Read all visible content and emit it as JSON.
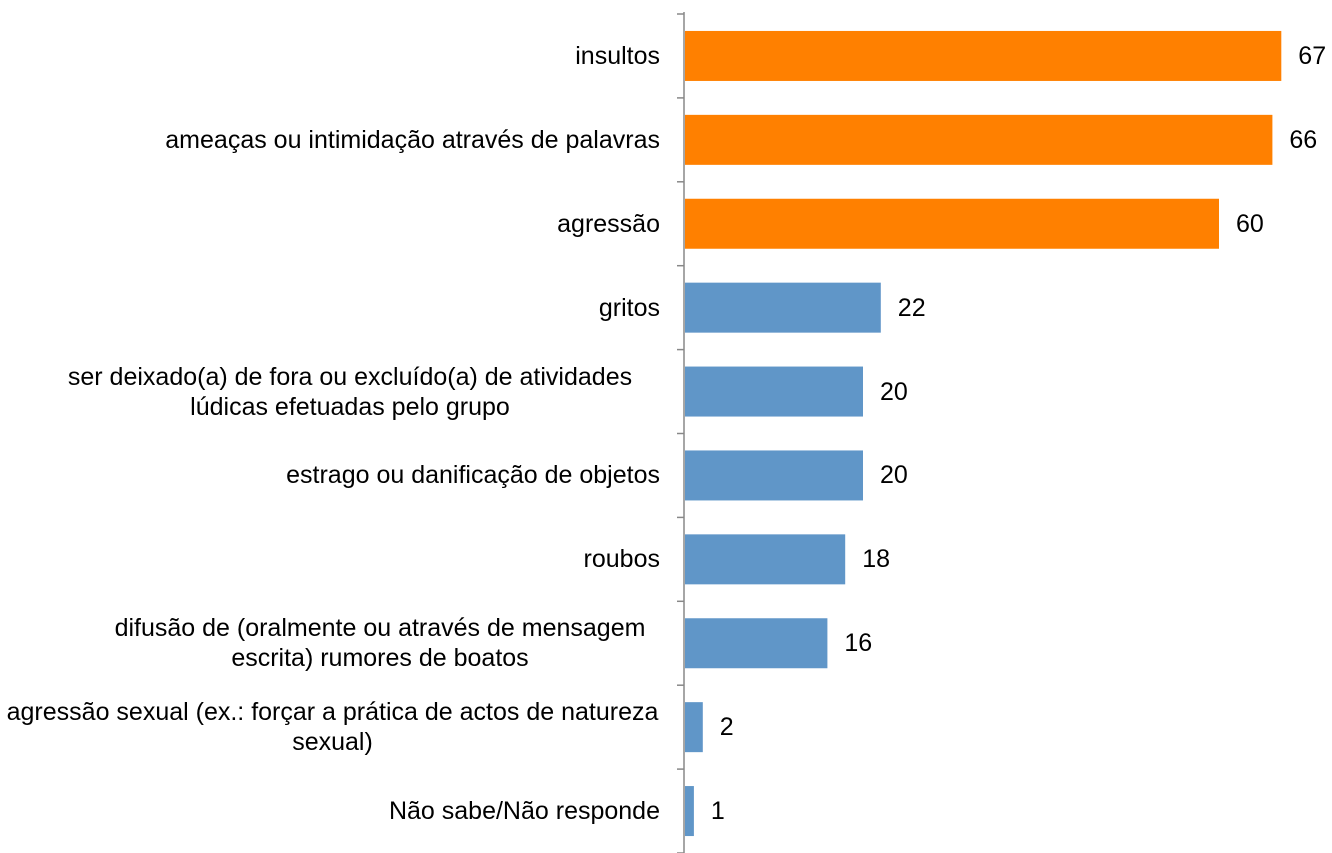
{
  "chart_data": {
    "type": "bar",
    "orientation": "horizontal",
    "categories": [
      "insultos",
      "ameaças ou intimidação através de palavras",
      "agressão",
      "gritos",
      "ser deixado(a) de fora ou excluído(a) de atividades lúdicas efetuadas pelo grupo",
      "estrago ou danificação de objetos",
      "roubos",
      "difusão de (oralmente ou através de mensagem escrita) rumores de boatos",
      "agressão sexual (ex.: forçar a prática de actos de natureza sexual)",
      "Não sabe/Não responde"
    ],
    "values": [
      67,
      66,
      60,
      22,
      20,
      20,
      18,
      16,
      2,
      1
    ],
    "colors": [
      "#ff8000",
      "#ff8000",
      "#ff8000",
      "#6096c8",
      "#6096c8",
      "#6096c8",
      "#6096c8",
      "#6096c8",
      "#6096c8",
      "#6096c8"
    ]
  }
}
